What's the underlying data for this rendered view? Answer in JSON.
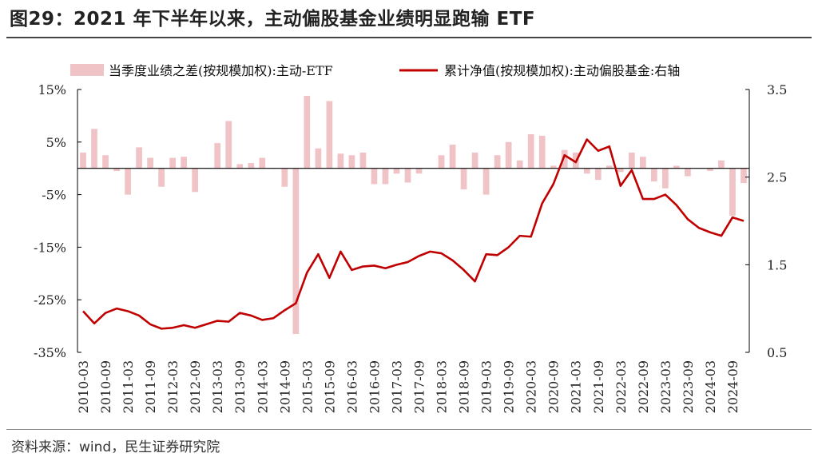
{
  "title": "图29：2021 年下半年以来，主动偏股基金业绩明显跑输 ETF",
  "source": "资料来源：wind，民生证券研究院",
  "colors": {
    "bar": "#f0c3c6",
    "line": "#c00000",
    "axis": "#000000"
  },
  "chart_data": {
    "type": "bar+line",
    "legend": [
      "当季度业绩之差(按规模加权):主动-ETF",
      "累计净值(按规模加权):主动偏股基金:右轴"
    ],
    "legend_position": "top",
    "grid": false,
    "x_tick_labels": [
      "2010-03",
      "2010-09",
      "2011-03",
      "2011-09",
      "2012-03",
      "2012-09",
      "2013-03",
      "2013-09",
      "2014-03",
      "2014-09",
      "2015-03",
      "2015-09",
      "2016-03",
      "2016-09",
      "2017-03",
      "2017-09",
      "2018-03",
      "2018-09",
      "2019-03",
      "2019-09",
      "2020-03",
      "2020-09",
      "2021-03",
      "2021-09",
      "2022-03",
      "2022-09",
      "2023-03",
      "2023-09",
      "2024-03",
      "2024-09"
    ],
    "y_left": {
      "ticks": [
        "15%",
        "5%",
        "-5%",
        "-15%",
        "-25%",
        "-35%"
      ],
      "range": [
        -35,
        15
      ],
      "unit": "%"
    },
    "y_right": {
      "ticks": [
        "3.5",
        "2.5",
        "1.5",
        "0.5"
      ],
      "range": [
        0.5,
        3.5
      ]
    },
    "x": [
      "2010-03",
      "2010-06",
      "2010-09",
      "2010-12",
      "2011-03",
      "2011-06",
      "2011-09",
      "2011-12",
      "2012-03",
      "2012-06",
      "2012-09",
      "2012-12",
      "2013-03",
      "2013-06",
      "2013-09",
      "2013-12",
      "2014-03",
      "2014-06",
      "2014-09",
      "2014-12",
      "2015-03",
      "2015-06",
      "2015-09",
      "2015-12",
      "2016-03",
      "2016-06",
      "2016-09",
      "2016-12",
      "2017-03",
      "2017-06",
      "2017-09",
      "2017-12",
      "2018-03",
      "2018-06",
      "2018-09",
      "2018-12",
      "2019-03",
      "2019-06",
      "2019-09",
      "2019-12",
      "2020-03",
      "2020-06",
      "2020-09",
      "2020-12",
      "2021-03",
      "2021-06",
      "2021-09",
      "2021-12",
      "2022-03",
      "2022-06",
      "2022-09",
      "2022-12",
      "2023-03",
      "2023-06",
      "2023-09",
      "2023-12",
      "2024-03",
      "2024-06",
      "2024-09",
      "2024-12"
    ],
    "series": [
      {
        "name": "当季度业绩之差(按规模加权):主动-ETF",
        "type": "bar",
        "axis": "left",
        "values": [
          3.0,
          7.5,
          2.5,
          -0.5,
          -5.0,
          4.0,
          2.0,
          -3.5,
          2.0,
          2.2,
          -4.5,
          0,
          4.8,
          9.0,
          0.8,
          1.0,
          2.0,
          0,
          -3.5,
          -31.5,
          13.8,
          3.8,
          12.8,
          2.8,
          2.5,
          3.0,
          -3.0,
          -3.0,
          -1.0,
          -2.7,
          -1.0,
          0,
          2.5,
          4.5,
          -4.0,
          3.0,
          -5.0,
          2.5,
          5.0,
          1.5,
          6.5,
          6.2,
          0.5,
          3.5,
          3.0,
          -1.0,
          -2.2,
          0.5,
          -0.7,
          3.0,
          2.2,
          -2.5,
          -3.8,
          0.5,
          -1.5,
          0,
          -0.5,
          1.5,
          -9.0,
          -2.8
        ]
      },
      {
        "name": "累计净值(按规模加权):主动偏股基金:右轴",
        "type": "line",
        "axis": "right",
        "values": [
          0.97,
          0.83,
          0.95,
          1.0,
          0.97,
          0.92,
          0.82,
          0.77,
          0.78,
          0.81,
          0.78,
          0.82,
          0.86,
          0.85,
          0.95,
          0.92,
          0.87,
          0.89,
          0.98,
          1.06,
          1.41,
          1.62,
          1.35,
          1.65,
          1.44,
          1.48,
          1.49,
          1.46,
          1.5,
          1.53,
          1.6,
          1.65,
          1.63,
          1.55,
          1.44,
          1.31,
          1.62,
          1.61,
          1.7,
          1.83,
          1.82,
          2.2,
          2.42,
          2.75,
          2.67,
          2.93,
          2.8,
          2.85,
          2.4,
          2.58,
          2.25,
          2.25,
          2.3,
          2.18,
          2.02,
          1.92,
          1.87,
          1.83,
          2.04,
          2.0
        ]
      }
    ]
  }
}
